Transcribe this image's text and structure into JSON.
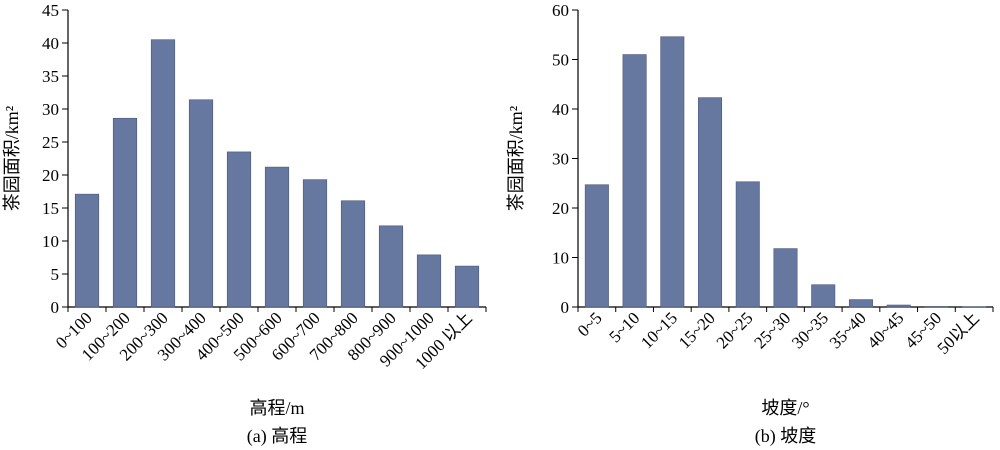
{
  "chart_data": [
    {
      "type": "bar",
      "caption": "(a) 高程",
      "xlabel": "高程/m",
      "ylabel": "茶园面积/km²",
      "ylim": [
        0,
        45
      ],
      "yticks": [
        0,
        5,
        10,
        15,
        20,
        25,
        30,
        35,
        40,
        45
      ],
      "categories": [
        "0~100",
        "100~200",
        "200~300",
        "300~400",
        "400~500",
        "500~600",
        "600~700",
        "700~800",
        "800~900",
        "900~1000",
        "1000 以上"
      ],
      "values": [
        17.1,
        28.6,
        40.5,
        31.4,
        23.5,
        21.2,
        19.3,
        16.1,
        12.3,
        7.9,
        6.2
      ],
      "bar_color": "#6677a0",
      "grid": false
    },
    {
      "type": "bar",
      "caption": "(b) 坡度",
      "xlabel": "坡度/°",
      "ylabel": "茶园面积/km²",
      "ylim": [
        0,
        60
      ],
      "yticks": [
        0,
        10,
        20,
        30,
        40,
        50,
        60
      ],
      "categories": [
        "0~5",
        "5~10",
        "10~15",
        "15~20",
        "20~25",
        "25~30",
        "30~35",
        "35~40",
        "40~45",
        "45~50",
        "50以上"
      ],
      "values": [
        24.7,
        51.0,
        54.6,
        42.3,
        25.3,
        11.8,
        4.5,
        1.5,
        0.4,
        0.1,
        0.05
      ],
      "bar_color": "#6677a0",
      "grid": false
    }
  ]
}
